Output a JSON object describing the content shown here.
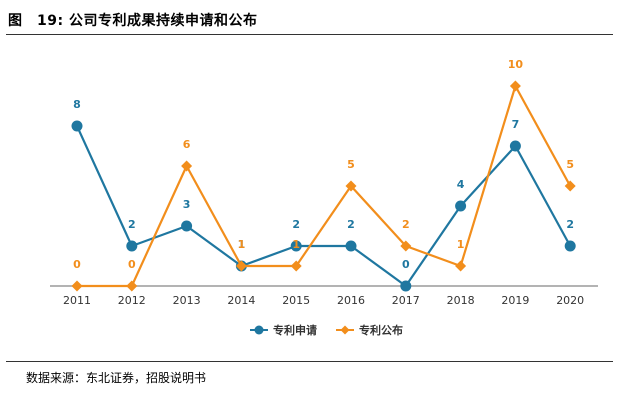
{
  "figure_title": "图　19:  公司专利成果持续申请和公布",
  "source": "数据来源：东北证券，招股说明书",
  "chart_data": {
    "type": "line",
    "title": "图　19:  公司专利成果持续申请和公布",
    "xlabel": "",
    "ylabel": "",
    "categories": [
      "2011",
      "2012",
      "2013",
      "2014",
      "2015",
      "2016",
      "2017",
      "2018",
      "2019",
      "2020"
    ],
    "ylim": [
      0,
      10
    ],
    "grid": false,
    "legend_position": "bottom",
    "series": [
      {
        "name": "专利申请",
        "color": "#1f77a0",
        "marker": "circle",
        "values": [
          8,
          2,
          3,
          1,
          2,
          2,
          0,
          4,
          7,
          2
        ]
      },
      {
        "name": "专利公布",
        "color": "#f28e1c",
        "marker": "diamond",
        "values": [
          0,
          0,
          6,
          1,
          1,
          5,
          2,
          1,
          10,
          5
        ]
      }
    ]
  }
}
